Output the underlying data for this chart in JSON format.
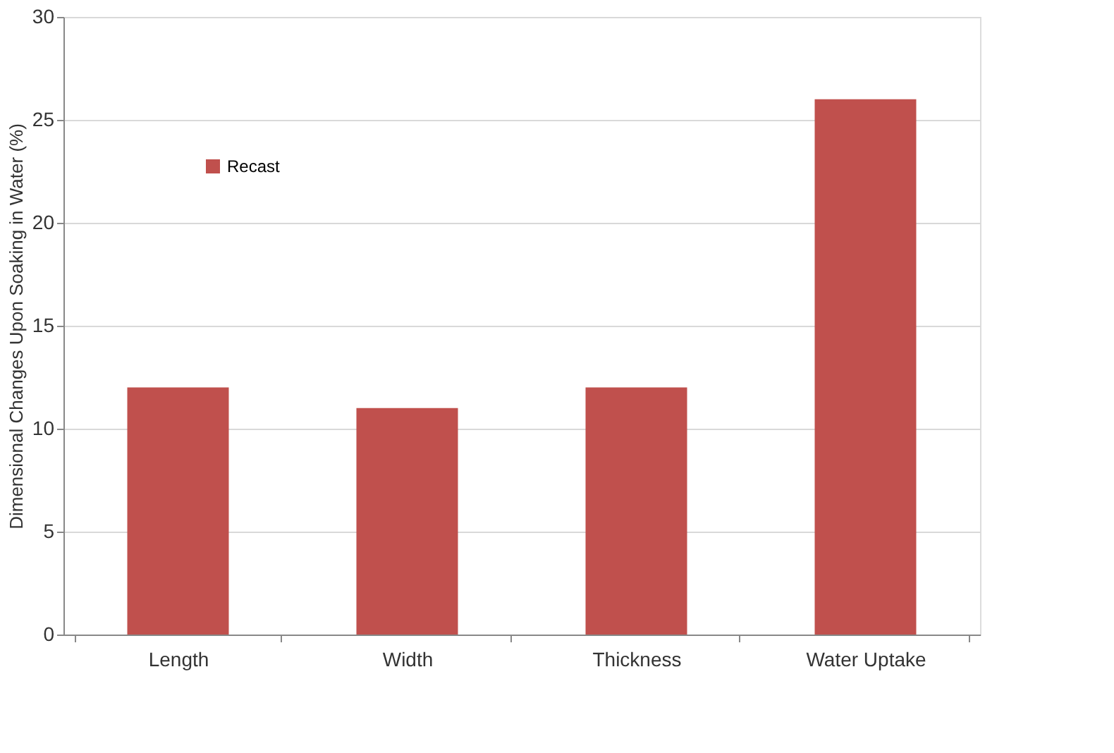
{
  "chart_data": {
    "type": "bar",
    "ylabel": "Dimensional Changes Upon Soaking in Water (%)",
    "categories": [
      "Length",
      "Width",
      "Thickness",
      "Water Uptake"
    ],
    "series": [
      {
        "name": "Recast",
        "color": "#c0504d",
        "values": [
          12,
          11,
          12,
          26
        ]
      }
    ],
    "ylim": [
      0,
      30
    ],
    "yticks": [
      0,
      5,
      10,
      15,
      20,
      25,
      30
    ],
    "grid": "y",
    "legend": "top left"
  }
}
